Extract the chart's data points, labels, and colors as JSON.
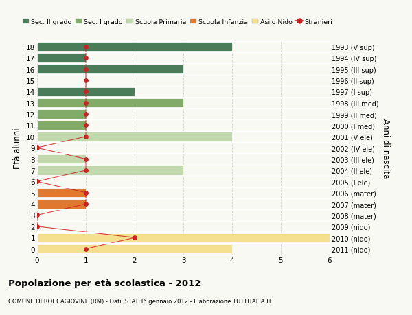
{
  "ages": [
    18,
    17,
    16,
    15,
    14,
    13,
    12,
    11,
    10,
    9,
    8,
    7,
    6,
    5,
    4,
    3,
    2,
    1,
    0
  ],
  "years": [
    "1993 (V sup)",
    "1994 (IV sup)",
    "1995 (III sup)",
    "1996 (II sup)",
    "1997 (I sup)",
    "1998 (III med)",
    "1999 (II med)",
    "2000 (I med)",
    "2001 (V ele)",
    "2002 (IV ele)",
    "2003 (III ele)",
    "2004 (II ele)",
    "2005 (I ele)",
    "2006 (mater)",
    "2007 (mater)",
    "2008 (mater)",
    "2009 (nido)",
    "2010 (nido)",
    "2011 (nido)"
  ],
  "bar_values": [
    4,
    1,
    3,
    0,
    2,
    3,
    1,
    1,
    4,
    0,
    1,
    3,
    0,
    1,
    1,
    0,
    0,
    6,
    4
  ],
  "bar_colors": [
    "#4a7c59",
    "#4a7c59",
    "#4a7c59",
    "#4a7c59",
    "#4a7c59",
    "#82aa68",
    "#82aa68",
    "#82aa68",
    "#c2d9ae",
    "#c2d9ae",
    "#c2d9ae",
    "#c2d9ae",
    "#c2d9ae",
    "#e07830",
    "#e07830",
    "#e07830",
    "#f5e090",
    "#f5e090",
    "#f5e090"
  ],
  "stranieri_values": [
    1,
    1,
    1,
    1,
    1,
    1,
    1,
    1,
    1,
    0,
    1,
    1,
    0,
    1,
    1,
    0,
    0,
    2,
    1
  ],
  "stranieri_color": "#cc2222",
  "legend_items": [
    {
      "label": "Sec. II grado",
      "color": "#4a7c59"
    },
    {
      "label": "Sec. I grado",
      "color": "#82aa68"
    },
    {
      "label": "Scuola Primaria",
      "color": "#c2d9ae"
    },
    {
      "label": "Scuola Infanzia",
      "color": "#e07830"
    },
    {
      "label": "Asilo Nido",
      "color": "#f5e090"
    },
    {
      "label": "Stranieri",
      "color": "#cc2222"
    }
  ],
  "ylabel": "Età alunni",
  "ylabel2": "Anni di nascita",
  "title": "Popolazione per età scolastica - 2012",
  "subtitle": "COMUNE DI ROCCAGIOVINE (RM) - Dati ISTAT 1° gennaio 2012 - Elaborazione TUTTITALIA.IT",
  "xlim": [
    0,
    6
  ],
  "xticks": [
    0,
    1,
    2,
    3,
    4,
    5,
    6
  ],
  "bg_color": "#f9f9f4",
  "grid_color": "#d0d0d0"
}
